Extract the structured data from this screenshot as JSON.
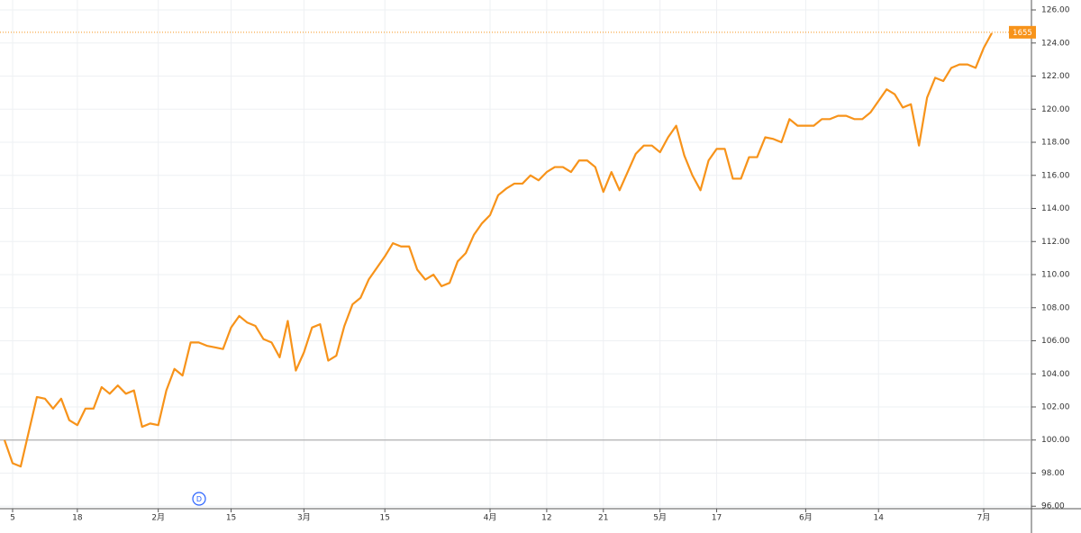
{
  "chart_data": {
    "type": "line",
    "categories": [
      null,
      "5",
      null,
      null,
      null,
      null,
      null,
      null,
      null,
      "18",
      null,
      null,
      null,
      null,
      null,
      null,
      null,
      null,
      null,
      "2月",
      null,
      null,
      null,
      null,
      null,
      null,
      null,
      null,
      "15",
      null,
      null,
      null,
      null,
      null,
      null,
      null,
      null,
      "3月",
      null,
      null,
      null,
      null,
      null,
      null,
      null,
      null,
      null,
      "15",
      null,
      null,
      null,
      null,
      null,
      null,
      null,
      null,
      null,
      null,
      null,
      null,
      "4月",
      null,
      null,
      null,
      null,
      null,
      null,
      "12",
      null,
      null,
      null,
      null,
      null,
      null,
      "21",
      null,
      null,
      null,
      null,
      null,
      null,
      "5月",
      null,
      null,
      null,
      null,
      null,
      null,
      "17",
      null,
      null,
      null,
      null,
      null,
      null,
      null,
      null,
      null,
      null,
      "6月",
      null,
      null,
      null,
      null,
      null,
      null,
      null,
      null,
      "14",
      null,
      null,
      null,
      null,
      null,
      null,
      null,
      null,
      null,
      null,
      null,
      null,
      "7月",
      null
    ],
    "series": [
      {
        "color": "#f7931a",
        "values": [
          100.0,
          98.6,
          98.4,
          100.5,
          102.6,
          102.5,
          101.9,
          102.5,
          101.2,
          100.9,
          101.9,
          101.9,
          103.2,
          102.8,
          103.3,
          102.8,
          103.0,
          100.8,
          101.0,
          100.9,
          103.0,
          104.3,
          103.9,
          105.9,
          105.9,
          105.7,
          105.6,
          105.5,
          106.8,
          107.5,
          107.1,
          106.9,
          106.1,
          105.9,
          105.0,
          107.2,
          104.2,
          105.3,
          106.8,
          107.0,
          104.8,
          105.1,
          106.9,
          108.2,
          108.6,
          109.7,
          110.4,
          111.1,
          111.9,
          111.7,
          111.7,
          110.3,
          109.7,
          110.0,
          109.3,
          109.5,
          110.8,
          111.3,
          112.4,
          113.1,
          113.6,
          114.8,
          115.2,
          115.5,
          115.5,
          116.0,
          115.7,
          116.2,
          116.5,
          116.5,
          116.2,
          116.9,
          116.9,
          116.5,
          115.0,
          116.2,
          115.1,
          116.2,
          117.3,
          117.8,
          117.8,
          117.4,
          118.3,
          119.0,
          117.2,
          116.0,
          115.1,
          116.9,
          117.6,
          117.6,
          115.8,
          115.8,
          117.1,
          117.1,
          118.3,
          118.2,
          118.0,
          119.4,
          119.0,
          119.0,
          119.0,
          119.4,
          119.4,
          119.6,
          119.6,
          119.4,
          119.4,
          119.8,
          120.5,
          121.2,
          120.9,
          120.1,
          120.3,
          117.8,
          120.7,
          121.9,
          121.7,
          122.5,
          122.7,
          122.7,
          122.5,
          123.7,
          124.6
        ]
      }
    ],
    "ylim": [
      95.85,
      126.6
    ],
    "yticks": [
      {
        "value": 96,
        "label": "96.00"
      },
      {
        "value": 98,
        "label": "98.00"
      },
      {
        "value": 100,
        "label": "100.00"
      },
      {
        "value": 102,
        "label": "102.00"
      },
      {
        "value": 104,
        "label": "104.00"
      },
      {
        "value": 106,
        "label": "106.00"
      },
      {
        "value": 108,
        "label": "108.00"
      },
      {
        "value": 110,
        "label": "110.00"
      },
      {
        "value": 112,
        "label": "112.00"
      },
      {
        "value": 114,
        "label": "114.00"
      },
      {
        "value": 116,
        "label": "116.00"
      },
      {
        "value": 118,
        "label": "118.00"
      },
      {
        "value": 120,
        "label": "120.00"
      },
      {
        "value": 122,
        "label": "122.00"
      },
      {
        "value": 124,
        "label": "124.00"
      },
      {
        "value": 126,
        "label": "126.00"
      }
    ],
    "grid": true,
    "baseline": 100,
    "last_price": 124.65,
    "last_price_label": "1655",
    "event_marker": "D"
  }
}
